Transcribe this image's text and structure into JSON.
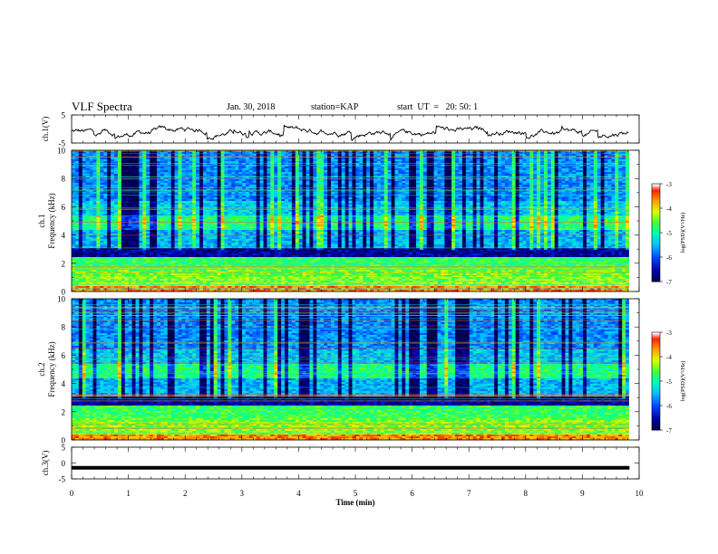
{
  "header": {
    "title": "VLF Spectra",
    "date": "Jan. 30, 2018",
    "station": "station=KAP",
    "start": "start  UT  =   20: 50: 1"
  },
  "chart_data": [
    {
      "type": "line",
      "ylabel": "ch.1(V)",
      "ylim": [
        -5,
        5
      ],
      "yticks": [
        "5",
        "-5"
      ],
      "xlim": [
        0,
        10
      ],
      "description_series": "noisy waveform around about -1 V"
    },
    {
      "type": "heatmap",
      "ylabel": "ch.1  Frequency (kHz)",
      "ylabel_line1": "ch.1",
      "ylabel_line2": "Frequency  (kHz)",
      "ylim": [
        0,
        10
      ],
      "yticks": [
        "0",
        "2",
        "4",
        "6",
        "8",
        "10"
      ],
      "xlim": [
        0,
        10
      ],
      "colorbar": {
        "label": "log(PSD)(V²/Hz)",
        "range": [
          -7,
          -3
        ],
        "ticks": [
          "-3",
          "-4",
          "-5",
          "-6",
          "-7"
        ]
      }
    },
    {
      "type": "heatmap",
      "ylabel": "ch.2  Frequency (kHz)",
      "ylabel_line1": "ch.2",
      "ylabel_line2": "Frequency  (kHz)",
      "ylim": [
        0,
        10
      ],
      "yticks": [
        "0",
        "2",
        "4",
        "6",
        "8",
        "10"
      ],
      "xlim": [
        0,
        10
      ],
      "colorbar": {
        "label": "log(PSD)(V²/Hz)",
        "range": [
          -7,
          -3
        ],
        "ticks": [
          "-3",
          "-4",
          "-5",
          "-6",
          "-7"
        ]
      }
    },
    {
      "type": "line",
      "ylabel": "ch.3(V)",
      "ylim": [
        -5,
        5
      ],
      "yticks": [
        "5",
        "0",
        "-5"
      ],
      "xlim": [
        0,
        9.83
      ],
      "series": [
        {
          "x": [
            0,
            9.83
          ],
          "y": [
            -1.5,
            -1.5
          ]
        }
      ]
    }
  ],
  "xaxis": {
    "label": "Time  (min)",
    "ticks": [
      "0",
      "1",
      "2",
      "3",
      "4",
      "5",
      "6",
      "7",
      "8",
      "9",
      "10"
    ],
    "range": [
      0,
      10
    ]
  }
}
